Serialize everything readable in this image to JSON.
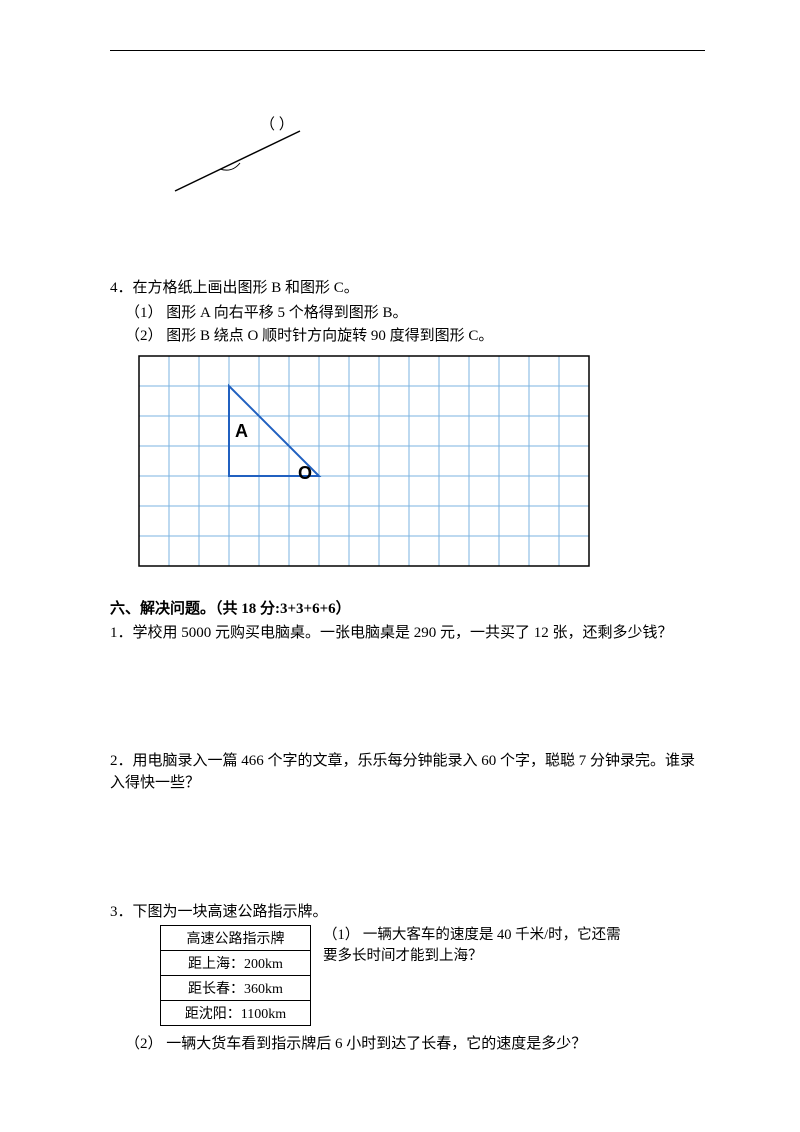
{
  "angle_label": "（     ）",
  "q4": {
    "title": "4．在方格纸上画出图形 B 和图形 C。",
    "sub1": "（1） 图形 A 向右平移 5 个格得到图形 B。",
    "sub2": "（2） 图形 B 绕点 O 顺时针方向旋转 90 度得到图形 C。"
  },
  "grid": {
    "cols": 15,
    "rows": 7,
    "cell": 30,
    "line_color": "#7bb3e0",
    "border_color": "#000000",
    "label_A": "A",
    "label_O": "O",
    "triangle_color": "#2060c0",
    "A_col": 3.2,
    "A_row": 2.7,
    "O_col": 5.3,
    "O_row": 4.1,
    "tri_p1": [
      3,
      1
    ],
    "tri_p2": [
      3,
      4
    ],
    "tri_p3": [
      6,
      4
    ]
  },
  "section6": {
    "header": "六、解决问题。（共 18 分:3+3+6+6）",
    "q1": "1．学校用 5000 元购买电脑桌。一张电脑桌是 290 元，一共买了 12 张，还剩多少钱？",
    "q2": "2．用电脑录入一篇 466 个字的文章，乐乐每分钟能录入 60 个字，聪聪 7 分钟录完。谁录入得快一些？",
    "q3": {
      "title": "3．下图为一块高速公路指示牌。",
      "sign_header": "高速公路指示牌",
      "rows": [
        "距上海：200km",
        "距长春：360km",
        "距沈阳：1100km"
      ],
      "sub1": "（1） 一辆大客车的速度是 40 千米/时，它还需要多长时间才能到上海？",
      "sub2": "（2） 一辆大货车看到指示牌后 6 小时到达了长春，它的速度是多少？"
    }
  },
  "colors": {
    "text": "#000000",
    "bg": "#ffffff"
  }
}
